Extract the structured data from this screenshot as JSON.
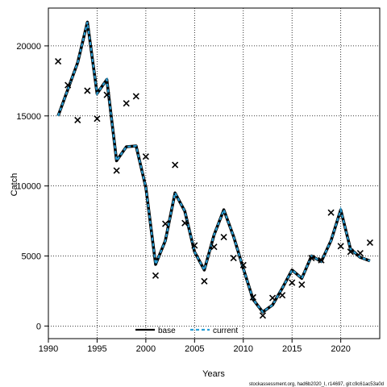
{
  "chart_data": {
    "type": "line",
    "xlabel": "Years",
    "ylabel": "Catch",
    "xlim": [
      1990,
      2024
    ],
    "ylim": [
      -900,
      22700
    ],
    "xticks": [
      1990,
      1995,
      2000,
      2005,
      2010,
      2015,
      2020
    ],
    "yticks": [
      0,
      5000,
      10000,
      15000,
      20000
    ],
    "grid": true,
    "legend_position": "bottom-center",
    "series": [
      {
        "name": "base",
        "style": "solid",
        "color": "#000000",
        "x": [
          1991,
          1992,
          1993,
          1994,
          1995,
          1996,
          1997,
          1998,
          1999,
          2000,
          2001,
          2002,
          2003,
          2004,
          2005,
          2006,
          2007,
          2008,
          2009,
          2010,
          2011,
          2012,
          2013,
          2014,
          2015,
          2016,
          2017,
          2018,
          2019,
          2020,
          2021,
          2022,
          2023
        ],
        "y": [
          15000,
          16900,
          18800,
          21700,
          16600,
          17600,
          11800,
          12800,
          12850,
          9900,
          4400,
          6100,
          9500,
          8200,
          5300,
          4000,
          6500,
          8300,
          6400,
          4100,
          1900,
          1000,
          1500,
          2700,
          4000,
          3400,
          5000,
          4600,
          6100,
          8300,
          5500,
          4900,
          4650
        ]
      },
      {
        "name": "current",
        "style": "dashed",
        "color": "#2a9fd6",
        "x": [
          1991,
          1992,
          1993,
          1994,
          1995,
          1996,
          1997,
          1998,
          1999,
          2000,
          2001,
          2002,
          2003,
          2004,
          2005,
          2006,
          2007,
          2008,
          2009,
          2010,
          2011,
          2012,
          2013,
          2014,
          2015,
          2016,
          2017,
          2018,
          2019,
          2020,
          2021,
          2022,
          2023
        ],
        "y": [
          15000,
          16900,
          18800,
          21700,
          16600,
          17600,
          11800,
          12800,
          12850,
          9900,
          4400,
          6100,
          9500,
          8200,
          5300,
          4000,
          6500,
          8300,
          6400,
          4100,
          1900,
          1000,
          1500,
          2700,
          4000,
          3400,
          5000,
          4600,
          6100,
          8300,
          5500,
          4900,
          4650
        ]
      },
      {
        "marker": "x",
        "color": "#000000",
        "x": [
          1991,
          1992,
          1993,
          1994,
          1995,
          1996,
          1997,
          1998,
          1999,
          2000,
          2001,
          2002,
          2003,
          2004,
          2005,
          2006,
          2007,
          2008,
          2009,
          2010,
          2011,
          2012,
          2013,
          2014,
          2015,
          2016,
          2017,
          2018,
          2019,
          2020,
          2021,
          2022,
          2023
        ],
        "y": [
          18900,
          17200,
          14700,
          16800,
          14800,
          16500,
          11100,
          15900,
          16400,
          12100,
          3600,
          7300,
          11500,
          7350,
          5750,
          3200,
          5650,
          6350,
          4850,
          4350,
          2050,
          750,
          2000,
          2200,
          3100,
          2950,
          4850,
          4700,
          8100,
          5700,
          5300,
          5200,
          5950
        ]
      }
    ]
  },
  "source_text": "stockassessment.org, had6b2020_I, r14697, git:c9c61ac53a0d"
}
